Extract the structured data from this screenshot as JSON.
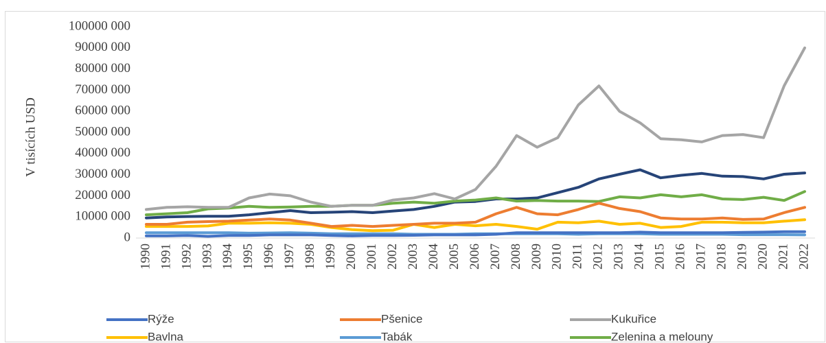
{
  "chart_data": {
    "type": "line",
    "y_label": "V tisících USD",
    "categories": [
      "1990",
      "1991",
      "1992",
      "1993",
      "1994",
      "1995",
      "1996",
      "1997",
      "1998",
      "1999",
      "2000",
      "2001",
      "2002",
      "2003",
      "2004",
      "2005",
      "2006",
      "2007",
      "2008",
      "2009",
      "2010",
      "2011",
      "2012",
      "2013",
      "2014",
      "2015",
      "2016",
      "2017",
      "2018",
      "2019",
      "2020",
      "2021",
      "2022"
    ],
    "ylim": [
      0,
      100000000
    ],
    "yticks": [
      0,
      {
        "value": 10000000,
        "label": "10000 000"
      },
      {
        "value": 20000000,
        "label": "20000 000"
      },
      {
        "value": 30000000,
        "label": "30000 000"
      },
      {
        "value": 40000000,
        "label": "40000 000"
      },
      {
        "value": 50000000,
        "label": "50000 000"
      },
      {
        "value": 60000000,
        "label": "60000 000"
      },
      {
        "value": 70000000,
        "label": "70000 000"
      },
      {
        "value": 80000000,
        "label": "80000 000"
      },
      {
        "value": 90000000,
        "label": "90000 000"
      },
      {
        "value": 100000000,
        "label": "100000 000"
      }
    ],
    "grid": false,
    "legend": "bottom",
    "series": [
      {
        "name": "Rýže",
        "color": "#4472c4",
        "values": [
          1000000,
          1000000,
          1200000,
          800000,
          1200000,
          1200000,
          1500000,
          1500000,
          1500000,
          1200000,
          1000000,
          1200000,
          1200000,
          1300000,
          1500000,
          1500000,
          1500000,
          1800000,
          2500000,
          2500000,
          2500000,
          2500000,
          2500000,
          2500000,
          2800000,
          2500000,
          2500000,
          2500000,
          2500000,
          2700000,
          2800000,
          3000000,
          3000000
        ]
      },
      {
        "name": "Pšenice",
        "color": "#ed7d31",
        "values": [
          6500000,
          6500000,
          7500000,
          7800000,
          8000000,
          8500000,
          9000000,
          8500000,
          7000000,
          5500000,
          6000000,
          5500000,
          6000000,
          6500000,
          7000000,
          7000000,
          7500000,
          11500000,
          14500000,
          11500000,
          11000000,
          13500000,
          16500000,
          14000000,
          12500000,
          9500000,
          9000000,
          9000000,
          9500000,
          8800000,
          9000000,
          12000000,
          14500000
        ]
      },
      {
        "name": "Kukuřice",
        "color": "#a5a5a5",
        "values": [
          13500000,
          14500000,
          14800000,
          14500000,
          14500000,
          19000000,
          20800000,
          20000000,
          17000000,
          15000000,
          15500000,
          15500000,
          18000000,
          19000000,
          21000000,
          18500000,
          23000000,
          34000000,
          48500000,
          43000000,
          47500000,
          63000000,
          72000000,
          60000000,
          54500000,
          47000000,
          46500000,
          45500000,
          48500000,
          49000000,
          47500000,
          72000000,
          90000000
        ]
      },
      {
        "name": "Bavlna",
        "color": "#ffc000",
        "values": [
          5500000,
          5500000,
          5500000,
          5700000,
          7000000,
          7000000,
          7200000,
          7000000,
          6500000,
          5000000,
          4000000,
          3500000,
          3700000,
          6500000,
          5000000,
          6500000,
          5800000,
          6500000,
          5500000,
          4200000,
          7500000,
          7200000,
          8000000,
          6500000,
          7000000,
          5000000,
          5500000,
          7500000,
          7500000,
          7200000,
          7200000,
          8000000,
          8700000
        ]
      },
      {
        "name": "Tabák",
        "color": "#5b9bd5",
        "values": [
          2500000,
          2500000,
          2500000,
          2500000,
          2500000,
          2300000,
          2400000,
          2500000,
          2300000,
          2000000,
          2000000,
          2000000,
          2000000,
          1800000,
          1800000,
          1800000,
          2000000,
          2000000,
          2000000,
          2000000,
          2000000,
          1800000,
          2000000,
          2000000,
          2000000,
          1800000,
          1800000,
          1800000,
          1800000,
          1600000,
          1600000,
          1600000,
          1500000
        ]
      },
      {
        "name": "Zelenina a melouny",
        "color": "#70ad47",
        "values": [
          11000000,
          11500000,
          12000000,
          13800000,
          14200000,
          15000000,
          14500000,
          14700000,
          15000000,
          15000000,
          15500000,
          15500000,
          16500000,
          17000000,
          16500000,
          17500000,
          18000000,
          19000000,
          17500000,
          17800000,
          17500000,
          17500000,
          17300000,
          19500000,
          19000000,
          20500000,
          19500000,
          20500000,
          18500000,
          18200000,
          19300000,
          17800000,
          22000000
        ]
      },
      {
        "color": "#264478",
        "values": [
          9500000,
          10000000,
          10200000,
          10300000,
          10300000,
          11000000,
          12000000,
          13000000,
          12000000,
          12200000,
          12500000,
          12000000,
          12800000,
          13500000,
          15000000,
          17000000,
          17300000,
          18500000,
          18500000,
          19000000,
          21500000,
          24000000,
          28000000,
          30200000,
          32300000,
          28500000,
          29700000,
          30600000,
          29300000,
          29100000,
          28000000,
          30200000,
          30800000
        ]
      }
    ]
  }
}
